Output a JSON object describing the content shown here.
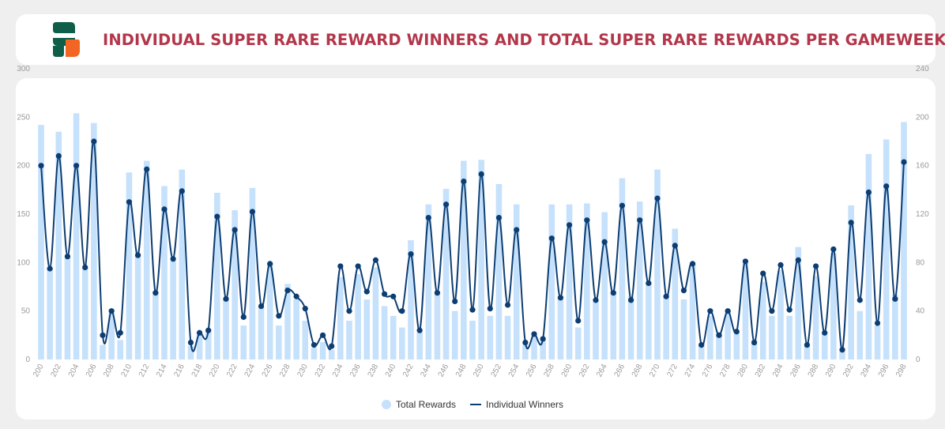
{
  "header": {
    "title": "INDIVIDUAL SUPER RARE REWARD WINNERS AND TOTAL SUPER RARE REWARDS PER GAMEWEEK",
    "logo_icon": "sorare-s-logo",
    "logo_colors": [
      "#0e5e4a",
      "#f26522"
    ]
  },
  "chart_data": {
    "type": "bar+line",
    "title": "INDIVIDUAL SUPER RARE REWARD WINNERS AND TOTAL SUPER RARE REWARDS PER GAMEWEEK",
    "xlabel": "",
    "ylabel": "",
    "x": [
      200,
      201,
      202,
      203,
      204,
      205,
      206,
      207,
      208,
      209,
      210,
      211,
      212,
      213,
      214,
      215,
      216,
      217,
      218,
      219,
      220,
      221,
      222,
      223,
      224,
      225,
      226,
      227,
      228,
      229,
      230,
      231,
      232,
      233,
      234,
      235,
      236,
      237,
      238,
      239,
      240,
      241,
      242,
      243,
      244,
      245,
      246,
      247,
      248,
      249,
      250,
      251,
      252,
      253,
      254,
      255,
      256,
      257,
      258,
      259,
      260,
      261,
      262,
      263,
      264,
      265,
      266,
      267,
      268,
      269,
      270,
      271,
      272,
      273,
      274,
      275,
      276,
      277,
      278,
      279,
      280,
      281,
      282,
      283,
      284,
      285,
      286,
      287,
      288,
      289,
      290,
      291,
      292,
      293,
      294,
      295,
      296,
      297,
      298
    ],
    "x_tick_labels": [
      "200",
      "202",
      "204",
      "206",
      "208",
      "210",
      "212",
      "214",
      "216",
      "218",
      "220",
      "222",
      "224",
      "226",
      "228",
      "230",
      "232",
      "234",
      "236",
      "238",
      "240",
      "242",
      "244",
      "246",
      "248",
      "250",
      "252",
      "254",
      "256",
      "258",
      "260",
      "262",
      "264",
      "266",
      "268",
      "270",
      "272",
      "274",
      "276",
      "278",
      "280",
      "282",
      "284",
      "286",
      "288",
      "290",
      "292",
      "294",
      "296",
      "298"
    ],
    "left_axis": {
      "ylim": [
        0,
        300
      ],
      "ticks": [
        "0",
        "50",
        "100",
        "150",
        "200",
        "250",
        "300"
      ]
    },
    "right_axis": {
      "ylim": [
        0,
        240
      ],
      "ticks": [
        "0",
        "40",
        "80",
        "120",
        "160",
        "200",
        "240"
      ]
    },
    "grid": false,
    "legend_position": "bottom-center",
    "series": [
      {
        "name": "Total Rewards",
        "type": "bar",
        "axis": "left",
        "color": "#c5e1fb",
        "values": [
          242,
          95,
          235,
          105,
          254,
          95,
          244,
          15,
          48,
          20,
          193,
          110,
          205,
          70,
          179,
          102,
          196,
          14,
          28,
          30,
          172,
          62,
          154,
          35,
          177,
          55,
          100,
          35,
          78,
          62,
          40,
          12,
          18,
          10,
          85,
          40,
          88,
          62,
          95,
          55,
          45,
          33,
          123,
          28,
          160,
          70,
          176,
          50,
          205,
          40,
          206,
          45,
          181,
          45,
          160,
          15,
          25,
          20,
          160,
          65,
          160,
          33,
          161,
          60,
          152,
          70,
          187,
          65,
          163,
          80,
          196,
          67,
          135,
          62,
          100,
          15,
          45,
          28,
          50,
          28,
          100,
          20,
          80,
          45,
          92,
          45,
          116,
          15,
          86,
          28,
          110,
          10,
          159,
          50,
          212,
          35,
          227,
          67,
          245
        ]
      },
      {
        "name": "Individual Winners",
        "type": "line",
        "axis": "right",
        "color": "#0d3e73",
        "values": [
          160,
          75,
          168,
          85,
          160,
          76,
          180,
          20,
          40,
          22,
          130,
          86,
          157,
          55,
          124,
          83,
          139,
          14,
          22,
          24,
          118,
          50,
          107,
          35,
          122,
          44,
          79,
          36,
          57,
          52,
          42,
          12,
          20,
          11,
          77,
          40,
          77,
          56,
          82,
          54,
          52,
          40,
          87,
          24,
          117,
          55,
          128,
          48,
          147,
          41,
          153,
          42,
          117,
          45,
          107,
          14,
          21,
          17,
          100,
          51,
          111,
          32,
          115,
          49,
          97,
          55,
          127,
          49,
          115,
          63,
          133,
          52,
          94,
          57,
          79,
          12,
          40,
          20,
          40,
          23,
          81,
          14,
          71,
          40,
          78,
          41,
          82,
          12,
          77,
          22,
          91,
          8,
          113,
          49,
          138,
          30,
          143,
          50,
          163
        ]
      }
    ]
  }
}
